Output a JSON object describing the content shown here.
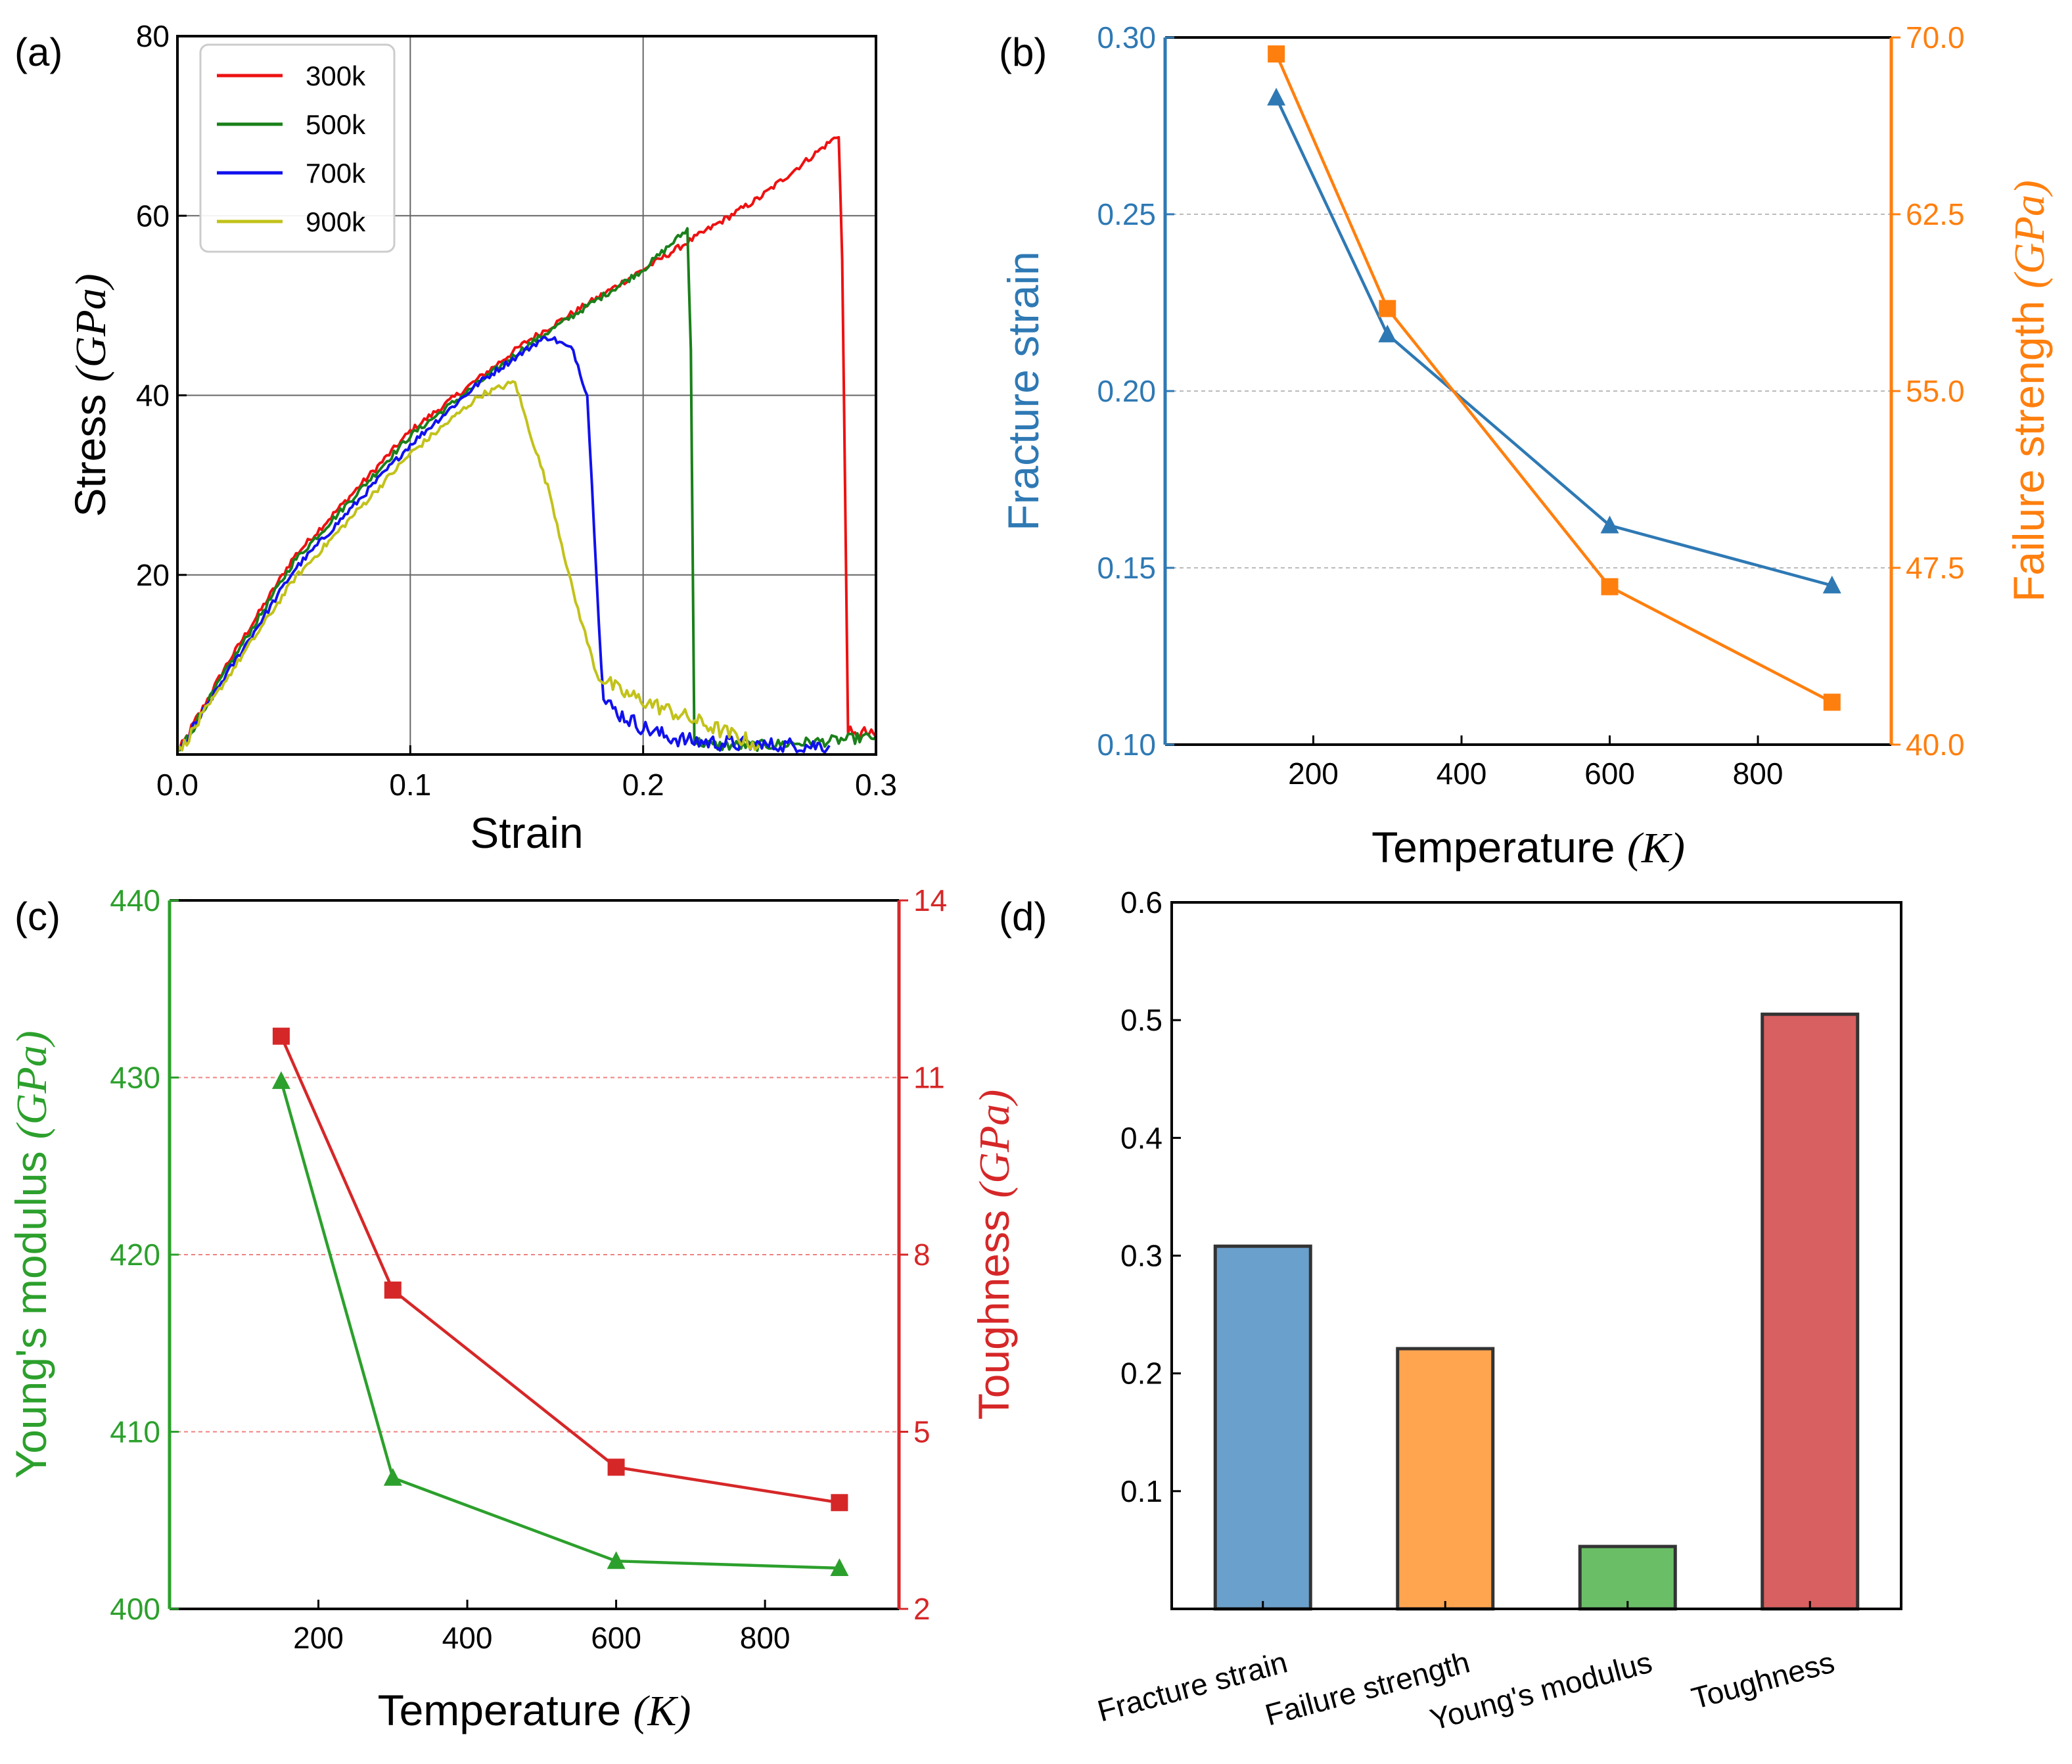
{
  "chart_data": [
    {
      "id": "a",
      "panel_label": "(a)",
      "type": "line",
      "xlabel": "Strain",
      "ylabel": "Stress",
      "ylabel_unit": "(GPa)",
      "xlim": [
        0.0,
        0.3
      ],
      "ylim": [
        0,
        80
      ],
      "xticks": [
        0.0,
        0.1,
        0.2,
        0.3
      ],
      "xtick_labels": [
        "0.0",
        "0.1",
        "0.2",
        "0.3"
      ],
      "yticks": [
        20,
        40,
        60,
        80
      ],
      "ytick_labels": [
        "20",
        "40",
        "60",
        "80"
      ],
      "grid": true,
      "legend_position": "top-left",
      "series": [
        {
          "name": "300k",
          "color": "#ee1111",
          "x": [
            0.0,
            0.02,
            0.05,
            0.1,
            0.15,
            0.2,
            0.25,
            0.284,
            0.2855,
            0.288,
            0.29,
            0.295,
            0.3
          ],
          "y": [
            0.0,
            9.5,
            22.0,
            36.0,
            46.0,
            54.0,
            62.0,
            69.0,
            55.0,
            3.0,
            2.0,
            2.5,
            2.0
          ]
        },
        {
          "name": "500k",
          "color": "#1a801a",
          "x": [
            0.0,
            0.02,
            0.05,
            0.1,
            0.15,
            0.2,
            0.219,
            0.2205,
            0.222,
            0.23,
            0.25,
            0.28,
            0.3
          ],
          "y": [
            0.0,
            9.0,
            21.5,
            35.5,
            45.5,
            54.0,
            58.5,
            45.0,
            1.5,
            1.0,
            1.0,
            1.5,
            2.0
          ]
        },
        {
          "name": "700k",
          "color": "#1111ee",
          "x": [
            0.0,
            0.02,
            0.05,
            0.1,
            0.13,
            0.155,
            0.16,
            0.17,
            0.176,
            0.18,
            0.183,
            0.19,
            0.2,
            0.21,
            0.22,
            0.25,
            0.28
          ],
          "y": [
            0.0,
            8.5,
            20.5,
            34.5,
            41.5,
            46.0,
            46.5,
            45.0,
            40.0,
            20.0,
            6.0,
            4.5,
            3.0,
            2.0,
            1.5,
            1.0,
            1.0
          ]
        },
        {
          "name": "900k",
          "color": "#c2c21a",
          "x": [
            0.0,
            0.02,
            0.05,
            0.1,
            0.13,
            0.145,
            0.15,
            0.16,
            0.17,
            0.18,
            0.19,
            0.2,
            0.22,
            0.24,
            0.25
          ],
          "y": [
            0.0,
            8.0,
            19.5,
            33.5,
            40.0,
            41.5,
            37.0,
            29.0,
            18.0,
            9.0,
            7.0,
            6.0,
            4.0,
            2.0,
            1.0
          ]
        }
      ]
    },
    {
      "id": "b",
      "panel_label": "(b)",
      "type": "line",
      "xlabel": "Temperature",
      "xlabel_unit": "(K)",
      "ylabel": "Fracture strain",
      "ylabel2": "Failure strength",
      "ylabel2_unit": "(GPa)",
      "xlim": [
        0,
        980
      ],
      "ylim": [
        0.1,
        0.3
      ],
      "ylim2": [
        40.0,
        70.0
      ],
      "xticks": [
        200,
        400,
        600,
        800
      ],
      "xtick_labels": [
        "200",
        "400",
        "600",
        "800"
      ],
      "yticks": [
        0.1,
        0.15,
        0.2,
        0.25,
        0.3
      ],
      "ytick_labels": [
        "0.10",
        "0.15",
        "0.20",
        "0.25",
        "0.30"
      ],
      "yticks2": [
        40.0,
        47.5,
        55.0,
        62.5,
        70.0
      ],
      "ytick2_labels": [
        "40.0",
        "47.5",
        "55.0",
        "62.5",
        "70.0"
      ],
      "left_color": "#2e79b4",
      "right_color": "#ff7f0e",
      "grid_color": "#bbbbbb",
      "series": [
        {
          "name": "Fracture strain",
          "axis": "left",
          "marker": "triangle",
          "color": "#2e79b4",
          "x": [
            150,
            300,
            600,
            900
          ],
          "values": [
            0.283,
            0.216,
            0.162,
            0.145
          ]
        },
        {
          "name": "Failure strength",
          "axis": "right",
          "marker": "square",
          "color": "#ff7f0e",
          "x": [
            150,
            300,
            600,
            900
          ],
          "values": [
            69.3,
            58.5,
            46.7,
            41.8
          ]
        }
      ]
    },
    {
      "id": "c",
      "panel_label": "(c)",
      "type": "line",
      "xlabel": "Temperature",
      "xlabel_unit": "(K)",
      "ylabel": "Young's modulus",
      "ylabel_unit": "(GPa)",
      "ylabel2": "Toughness",
      "ylabel2_unit": "(GPa)",
      "xlim": [
        0,
        980
      ],
      "ylim": [
        400,
        440
      ],
      "ylim2": [
        2,
        14
      ],
      "xticks": [
        200,
        400,
        600,
        800
      ],
      "xtick_labels": [
        "200",
        "400",
        "600",
        "800"
      ],
      "yticks": [
        400,
        410,
        420,
        430,
        440
      ],
      "ytick_labels": [
        "400",
        "410",
        "420",
        "430",
        "440"
      ],
      "yticks2": [
        2,
        5,
        8,
        11,
        14
      ],
      "ytick2_labels": [
        "2",
        "5",
        "8",
        "11",
        "14"
      ],
      "left_color": "#2ca02c",
      "right_color": "#d62728",
      "grid_color": "#f08080",
      "series": [
        {
          "name": "Young's modulus",
          "axis": "left",
          "marker": "triangle",
          "color": "#2ca02c",
          "x": [
            150,
            300,
            600,
            900
          ],
          "values": [
            429.8,
            407.4,
            402.7,
            402.3
          ]
        },
        {
          "name": "Toughness",
          "axis": "right",
          "marker": "square",
          "color": "#d62728",
          "x": [
            150,
            300,
            600,
            900
          ],
          "values": [
            11.7,
            7.4,
            4.4,
            3.8
          ]
        }
      ]
    },
    {
      "id": "d",
      "panel_label": "(d)",
      "type": "bar",
      "xlabel": "",
      "ylabel": "",
      "ylim": [
        0,
        0.6
      ],
      "yticks": [
        0.1,
        0.2,
        0.3,
        0.4,
        0.5,
        0.6
      ],
      "ytick_labels": [
        "0.1",
        "0.2",
        "0.3",
        "0.4",
        "0.5",
        "0.6"
      ],
      "categories": [
        "Fracture strain",
        "Failure strength",
        "Young's modulus",
        "Toughness"
      ],
      "values": [
        0.308,
        0.221,
        0.053,
        0.505
      ],
      "colors": [
        "#6aa0cc",
        "#ffa54f",
        "#6abf66",
        "#d96060"
      ]
    }
  ]
}
